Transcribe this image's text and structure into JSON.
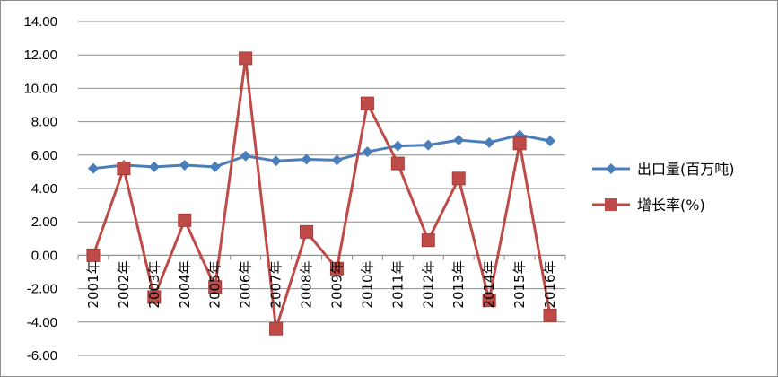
{
  "chart_data": {
    "type": "line",
    "title": "",
    "xlabel": "",
    "ylabel": "",
    "categories": [
      "2001年",
      "2002年",
      "2003年",
      "2004年",
      "2005年",
      "2006年",
      "2007年",
      "2008年",
      "2009年",
      "2010年",
      "2011年",
      "2012年",
      "2013年",
      "2014年",
      "2015年",
      "2016年"
    ],
    "ylim": [
      -6,
      14
    ],
    "ytick_step": 2,
    "ytick_labels": [
      "-6.00",
      "-4.00",
      "-2.00",
      "0.00",
      "2.00",
      "4.00",
      "6.00",
      "8.00",
      "10.00",
      "12.00",
      "14.00"
    ],
    "grid": true,
    "legend_position": "right",
    "series": [
      {
        "name": "出口量(百万吨)",
        "color": "#4a7ebb",
        "marker": "diamond",
        "values": [
          5.2,
          5.4,
          5.3,
          5.4,
          5.3,
          5.95,
          5.65,
          5.75,
          5.7,
          6.2,
          6.55,
          6.6,
          6.9,
          6.75,
          7.2,
          6.85
        ]
      },
      {
        "name": "增长率(%)",
        "color": "#be4b48",
        "marker": "square",
        "values": [
          0.0,
          5.2,
          -2.5,
          2.1,
          -1.9,
          11.8,
          -4.4,
          1.4,
          -0.8,
          9.1,
          5.5,
          0.9,
          4.6,
          -2.7,
          6.7,
          -3.6
        ]
      }
    ]
  }
}
